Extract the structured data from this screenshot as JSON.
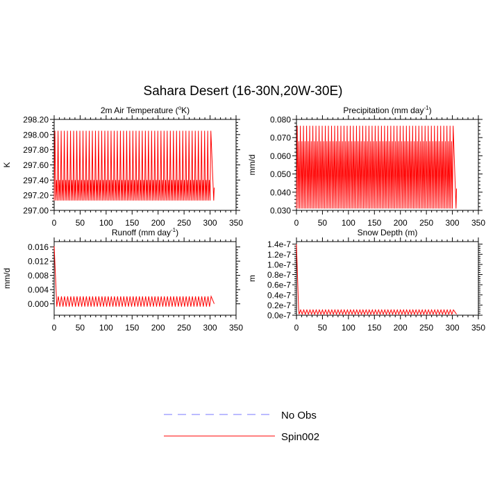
{
  "figure": {
    "title": "Sahara Desert (16-30N,20W-30E)"
  },
  "chart_data": [
    {
      "type": "line",
      "title": "2m Air Temperature (°K)",
      "title_main": "2m Air Temperature (",
      "title_sup": "o",
      "title_end": "K)",
      "ylabel": "K",
      "xlim": [
        0,
        350
      ],
      "ylim": [
        297.0,
        298.2
      ],
      "xticks": [
        0,
        50,
        100,
        150,
        200,
        250,
        300,
        350
      ],
      "xtick_labels": [
        "0",
        "50",
        "100",
        "150",
        "200",
        "250",
        "300",
        "350"
      ],
      "yticks": [
        297.0,
        297.2,
        297.4,
        297.6,
        297.8,
        298.0,
        298.2
      ],
      "ytick_labels": [
        "297.00",
        "297.20",
        "297.40",
        "297.60",
        "297.80",
        "298.00",
        "298.20"
      ],
      "series": [
        {
          "name": "Spin002",
          "color": "#ff0000",
          "pattern": "seasonal_two_peak",
          "x_start": 0,
          "x_end": 308,
          "period": 6,
          "min": 297.13,
          "peak_high": 298.05,
          "peak_low": 297.4,
          "end_value": 297.3
        }
      ]
    },
    {
      "type": "line",
      "title": "Precipitation (mm day⁻¹)",
      "title_main": "Precipitation (mm day",
      "title_sup": "-1",
      "title_end": ")",
      "ylabel": "mm/d",
      "xlim": [
        0,
        350
      ],
      "ylim": [
        0.03,
        0.08
      ],
      "xticks": [
        0,
        50,
        100,
        150,
        200,
        250,
        300,
        350
      ],
      "xtick_labels": [
        "0",
        "50",
        "100",
        "150",
        "200",
        "250",
        "300",
        "350"
      ],
      "yticks": [
        0.03,
        0.04,
        0.05,
        0.06,
        0.07,
        0.08
      ],
      "ytick_labels": [
        "0.030",
        "0.040",
        "0.050",
        "0.060",
        "0.070",
        "0.080"
      ],
      "series": [
        {
          "name": "Spin002",
          "color": "#ff0000",
          "pattern": "seasonal_two_peak",
          "x_start": 0,
          "x_end": 308,
          "period": 6,
          "min": 0.031,
          "peak_high": 0.0765,
          "peak_low": 0.068,
          "end_value": 0.042
        }
      ]
    },
    {
      "type": "line",
      "title": "Runoff (mm day⁻¹)",
      "title_main": "Runoff (mm day",
      "title_sup": "-1",
      "title_end": ")",
      "ylabel": "mm/d",
      "xlim": [
        0,
        350
      ],
      "ylim": [
        -0.0032,
        0.0175
      ],
      "xticks": [
        0,
        50,
        100,
        150,
        200,
        250,
        300,
        350
      ],
      "xtick_labels": [
        "0",
        "50",
        "100",
        "150",
        "200",
        "250",
        "300",
        "350"
      ],
      "yticks": [
        0.0,
        0.004,
        0.008,
        0.012,
        0.016
      ],
      "ytick_labels": [
        "0.000",
        "0.004",
        "0.008",
        "0.012",
        "0.016"
      ],
      "series": [
        {
          "name": "Spin002",
          "color": "#ff0000",
          "pattern": "spinup_decay",
          "x_start": 0,
          "x_end": 308,
          "period": 6,
          "initial": 0.0162,
          "min": -0.0008,
          "peak": 0.0021,
          "end_value": 0.0
        }
      ]
    },
    {
      "type": "line",
      "title": "Snow Depth (m)",
      "title_main": "Snow Depth (m)",
      "title_sup": "",
      "title_end": "",
      "ylabel": "m",
      "xlim": [
        0,
        350
      ],
      "ylim": [
        0.0,
        1.45e-07
      ],
      "xticks": [
        0,
        50,
        100,
        150,
        200,
        250,
        300,
        350
      ],
      "xtick_labels": [
        "0",
        "50",
        "100",
        "150",
        "200",
        "250",
        "300",
        "350"
      ],
      "yticks": [
        0.0,
        2e-08,
        4e-08,
        6e-08,
        8e-08,
        1e-07,
        1.2e-07,
        1.4e-07
      ],
      "ytick_labels": [
        "0.0e-7",
        "0.2e-7",
        "0.4e-7",
        "0.6e-7",
        "0.8e-7",
        "1.0e-7",
        "1.2e-7",
        "1.4e-7"
      ],
      "series": [
        {
          "name": "Spin002",
          "color": "#ff0000",
          "pattern": "spinup_decay",
          "x_start": 0,
          "x_end": 308,
          "period": 6,
          "initial": 1.4e-07,
          "min": 2e-09,
          "peak": 1.05e-08,
          "end_value": 2e-09
        }
      ]
    }
  ],
  "legend": {
    "placement": "bottom-center",
    "entries": [
      {
        "label": "No Obs",
        "color": "#7777ff",
        "style": "dashed"
      },
      {
        "label": "Spin002",
        "color": "#ff0000",
        "style": "solid"
      }
    ]
  }
}
